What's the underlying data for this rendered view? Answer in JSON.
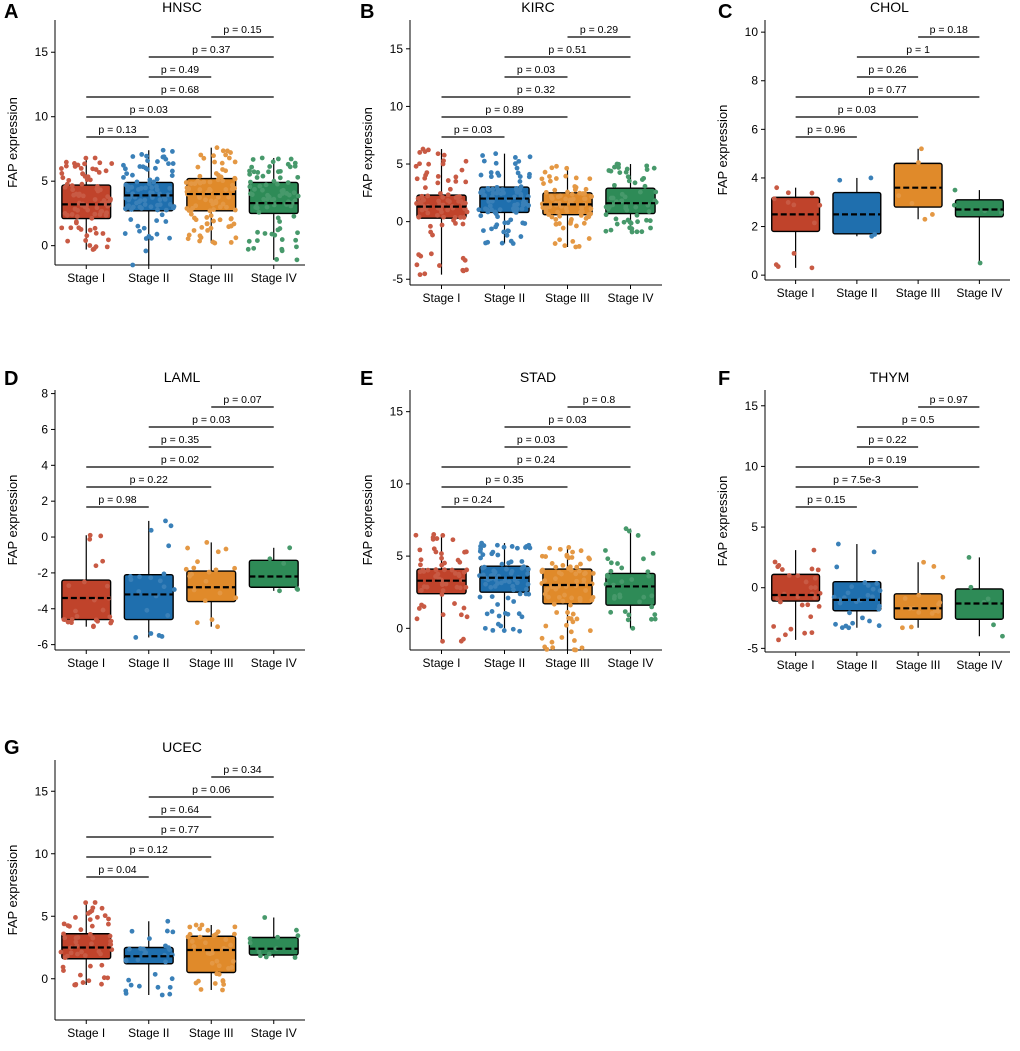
{
  "figure": {
    "ylabel": "FAP expression",
    "categories": [
      "Stage I",
      "Stage II",
      "Stage III",
      "Stage IV"
    ],
    "colors": {
      "Stage I": "#c0432b",
      "Stage II": "#1f6fae",
      "Stage III": "#e08a2a",
      "Stage IV": "#2e8b57"
    }
  },
  "chart_data": [
    {
      "panel": "A",
      "title": "HNSC",
      "type": "box",
      "ylim": [
        -1.5,
        17.5
      ],
      "yticks": [
        0,
        5,
        10,
        15
      ],
      "series": [
        {
          "name": "Stage I",
          "q1": 2.1,
          "median": 3.2,
          "q3": 4.7,
          "whisker_low": -0.3,
          "whisker_high": 6.8,
          "n_points": 90
        },
        {
          "name": "Stage II",
          "q1": 2.7,
          "median": 3.9,
          "q3": 4.9,
          "whisker_low": -1.5,
          "whisker_high": 7.4,
          "n_points": 90
        },
        {
          "name": "Stage III",
          "q1": 2.7,
          "median": 4.0,
          "q3": 5.2,
          "whisker_low": 0.2,
          "whisker_high": 7.6,
          "n_points": 90
        },
        {
          "name": "Stage IV",
          "q1": 2.5,
          "median": 3.3,
          "q3": 4.9,
          "whisker_low": -1.1,
          "whisker_high": 6.8,
          "n_points": 80
        }
      ],
      "comparisons": [
        {
          "from": "Stage I",
          "to": "Stage II",
          "label": "p = 0.13"
        },
        {
          "from": "Stage I",
          "to": "Stage III",
          "label": "p = 0.03"
        },
        {
          "from": "Stage I",
          "to": "Stage IV",
          "label": "p = 0.68"
        },
        {
          "from": "Stage II",
          "to": "Stage III",
          "label": "p = 0.49"
        },
        {
          "from": "Stage II",
          "to": "Stage IV",
          "label": "p = 0.37"
        },
        {
          "from": "Stage III",
          "to": "Stage IV",
          "label": "p = 0.15"
        }
      ]
    },
    {
      "panel": "B",
      "title": "KIRC",
      "type": "box",
      "ylim": [
        -5.5,
        17.5
      ],
      "yticks": [
        -5,
        0,
        5,
        10,
        15
      ],
      "series": [
        {
          "name": "Stage I",
          "q1": 0.3,
          "median": 1.3,
          "q3": 2.3,
          "whisker_low": -4.6,
          "whisker_high": 6.3,
          "n_points": 90
        },
        {
          "name": "Stage II",
          "q1": 0.8,
          "median": 2.0,
          "q3": 3.0,
          "whisker_low": -1.9,
          "whisker_high": 5.9,
          "n_points": 90
        },
        {
          "name": "Stage III",
          "q1": 0.6,
          "median": 1.5,
          "q3": 2.5,
          "whisker_low": -2.2,
          "whisker_high": 4.8,
          "n_points": 80
        },
        {
          "name": "Stage IV",
          "q1": 0.7,
          "median": 1.6,
          "q3": 2.9,
          "whisker_low": -0.9,
          "whisker_high": 5.0,
          "n_points": 60
        }
      ],
      "comparisons": [
        {
          "from": "Stage I",
          "to": "Stage II",
          "label": "p = 0.03"
        },
        {
          "from": "Stage I",
          "to": "Stage III",
          "label": "p = 0.89"
        },
        {
          "from": "Stage I",
          "to": "Stage IV",
          "label": "p = 0.32"
        },
        {
          "from": "Stage II",
          "to": "Stage III",
          "label": "p = 0.03"
        },
        {
          "from": "Stage II",
          "to": "Stage IV",
          "label": "p = 0.51"
        },
        {
          "from": "Stage III",
          "to": "Stage IV",
          "label": "p = 0.29"
        }
      ]
    },
    {
      "panel": "C",
      "title": "CHOL",
      "type": "box",
      "ylim": [
        -0.2,
        10.5
      ],
      "yticks": [
        0,
        2,
        4,
        6,
        8,
        10
      ],
      "series": [
        {
          "name": "Stage I",
          "q1": 1.8,
          "median": 2.5,
          "q3": 3.2,
          "whisker_low": 0.3,
          "whisker_high": 3.6,
          "n_points": 12
        },
        {
          "name": "Stage II",
          "q1": 1.7,
          "median": 2.5,
          "q3": 3.4,
          "whisker_low": 1.6,
          "whisker_high": 4.0,
          "n_points": 4
        },
        {
          "name": "Stage III",
          "q1": 2.8,
          "median": 3.6,
          "q3": 4.6,
          "whisker_low": 2.3,
          "whisker_high": 5.2,
          "n_points": 6
        },
        {
          "name": "Stage IV",
          "q1": 2.4,
          "median": 2.7,
          "q3": 3.1,
          "whisker_low": 0.5,
          "whisker_high": 3.5,
          "n_points": 5
        }
      ],
      "comparisons": [
        {
          "from": "Stage I",
          "to": "Stage II",
          "label": "p = 0.96"
        },
        {
          "from": "Stage I",
          "to": "Stage III",
          "label": "p = 0.03"
        },
        {
          "from": "Stage I",
          "to": "Stage IV",
          "label": "p = 0.77"
        },
        {
          "from": "Stage II",
          "to": "Stage III",
          "label": "p = 0.26"
        },
        {
          "from": "Stage II",
          "to": "Stage IV",
          "label": "p = 1"
        },
        {
          "from": "Stage III",
          "to": "Stage IV",
          "label": "p = 0.18"
        }
      ]
    },
    {
      "panel": "D",
      "title": "LAML",
      "type": "box",
      "ylim": [
        -6.3,
        8.2
      ],
      "yticks": [
        -6,
        -4,
        -2,
        0,
        2,
        4,
        6,
        8
      ],
      "series": [
        {
          "name": "Stage I",
          "q1": -4.6,
          "median": -3.4,
          "q3": -2.4,
          "whisker_low": -5.0,
          "whisker_high": 0.1,
          "n_points": 25
        },
        {
          "name": "Stage II",
          "q1": -4.6,
          "median": -3.2,
          "q3": -2.1,
          "whisker_low": -5.6,
          "whisker_high": 0.9,
          "n_points": 20
        },
        {
          "name": "Stage III",
          "q1": -3.6,
          "median": -2.8,
          "q3": -1.9,
          "whisker_low": -5.0,
          "whisker_high": -0.3,
          "n_points": 20
        },
        {
          "name": "Stage IV",
          "q1": -2.8,
          "median": -2.2,
          "q3": -1.3,
          "whisker_low": -3.0,
          "whisker_high": -0.6,
          "n_points": 6
        }
      ],
      "comparisons": [
        {
          "from": "Stage I",
          "to": "Stage II",
          "label": "p = 0.98"
        },
        {
          "from": "Stage I",
          "to": "Stage III",
          "label": "p = 0.22"
        },
        {
          "from": "Stage I",
          "to": "Stage IV",
          "label": "p = 0.02"
        },
        {
          "from": "Stage II",
          "to": "Stage III",
          "label": "p = 0.35"
        },
        {
          "from": "Stage II",
          "to": "Stage IV",
          "label": "p = 0.03"
        },
        {
          "from": "Stage III",
          "to": "Stage IV",
          "label": "p = 0.07"
        }
      ]
    },
    {
      "panel": "E",
      "title": "STAD",
      "type": "box",
      "ylim": [
        -1.5,
        16.5
      ],
      "yticks": [
        0,
        5,
        10,
        15
      ],
      "series": [
        {
          "name": "Stage I",
          "q1": 2.4,
          "median": 3.3,
          "q3": 4.1,
          "whisker_low": -0.9,
          "whisker_high": 6.5,
          "n_points": 60
        },
        {
          "name": "Stage II",
          "q1": 2.5,
          "median": 3.5,
          "q3": 4.3,
          "whisker_low": -0.2,
          "whisker_high": 5.9,
          "n_points": 80
        },
        {
          "name": "Stage III",
          "q1": 1.7,
          "median": 3.0,
          "q3": 4.1,
          "whisker_low": -1.5,
          "whisker_high": 5.6,
          "n_points": 80
        },
        {
          "name": "Stage IV",
          "q1": 1.6,
          "median": 2.9,
          "q3": 3.8,
          "whisker_low": 0.0,
          "whisker_high": 6.9,
          "n_points": 35
        }
      ],
      "comparisons": [
        {
          "from": "Stage I",
          "to": "Stage II",
          "label": "p = 0.24"
        },
        {
          "from": "Stage I",
          "to": "Stage III",
          "label": "p = 0.35"
        },
        {
          "from": "Stage I",
          "to": "Stage IV",
          "label": "p = 0.24"
        },
        {
          "from": "Stage II",
          "to": "Stage III",
          "label": "p = 0.03"
        },
        {
          "from": "Stage II",
          "to": "Stage IV",
          "label": "p = 0.03"
        },
        {
          "from": "Stage III",
          "to": "Stage IV",
          "label": "p = 0.8"
        }
      ]
    },
    {
      "panel": "F",
      "title": "THYM",
      "type": "box",
      "ylim": [
        -5.3,
        16.3
      ],
      "yticks": [
        -5,
        0,
        5,
        10,
        15
      ],
      "series": [
        {
          "name": "Stage I",
          "q1": -1.1,
          "median": -0.6,
          "q3": 1.1,
          "whisker_low": -4.3,
          "whisker_high": 3.1,
          "n_points": 30
        },
        {
          "name": "Stage II",
          "q1": -1.9,
          "median": -1.0,
          "q3": 0.5,
          "whisker_low": -3.3,
          "whisker_high": 3.6,
          "n_points": 30
        },
        {
          "name": "Stage III",
          "q1": -2.6,
          "median": -1.7,
          "q3": -0.5,
          "whisker_low": -3.3,
          "whisker_high": 2.1,
          "n_points": 15
        },
        {
          "name": "Stage IV",
          "q1": -2.6,
          "median": -1.3,
          "q3": -0.1,
          "whisker_low": -4.0,
          "whisker_high": 2.5,
          "n_points": 6
        }
      ],
      "comparisons": [
        {
          "from": "Stage I",
          "to": "Stage II",
          "label": "p = 0.15"
        },
        {
          "from": "Stage I",
          "to": "Stage III",
          "label": "p = 7.5e-3"
        },
        {
          "from": "Stage I",
          "to": "Stage IV",
          "label": "p = 0.19"
        },
        {
          "from": "Stage II",
          "to": "Stage III",
          "label": "p = 0.22"
        },
        {
          "from": "Stage II",
          "to": "Stage IV",
          "label": "p = 0.5"
        },
        {
          "from": "Stage III",
          "to": "Stage IV",
          "label": "p = 0.97"
        }
      ]
    },
    {
      "panel": "G",
      "title": "UCEC",
      "type": "box",
      "ylim": [
        -3.3,
        17.5
      ],
      "yticks": [
        0,
        5,
        10,
        15
      ],
      "series": [
        {
          "name": "Stage I",
          "q1": 1.6,
          "median": 2.5,
          "q3": 3.6,
          "whisker_low": -0.5,
          "whisker_high": 6.1,
          "n_points": 55
        },
        {
          "name": "Stage II",
          "q1": 1.2,
          "median": 1.8,
          "q3": 2.5,
          "whisker_low": -1.3,
          "whisker_high": 4.6,
          "n_points": 30
        },
        {
          "name": "Stage III",
          "q1": 0.5,
          "median": 2.3,
          "q3": 3.4,
          "whisker_low": -0.9,
          "whisker_high": 4.3,
          "n_points": 40
        },
        {
          "name": "Stage IV",
          "q1": 1.9,
          "median": 2.4,
          "q3": 3.3,
          "whisker_low": 1.7,
          "whisker_high": 4.9,
          "n_points": 12
        }
      ],
      "comparisons": [
        {
          "from": "Stage I",
          "to": "Stage II",
          "label": "p = 0.04"
        },
        {
          "from": "Stage I",
          "to": "Stage III",
          "label": "p = 0.12"
        },
        {
          "from": "Stage I",
          "to": "Stage IV",
          "label": "p = 0.77"
        },
        {
          "from": "Stage II",
          "to": "Stage III",
          "label": "p = 0.64"
        },
        {
          "from": "Stage II",
          "to": "Stage IV",
          "label": "p = 0.06"
        },
        {
          "from": "Stage III",
          "to": "Stage IV",
          "label": "p = 0.34"
        }
      ]
    }
  ]
}
